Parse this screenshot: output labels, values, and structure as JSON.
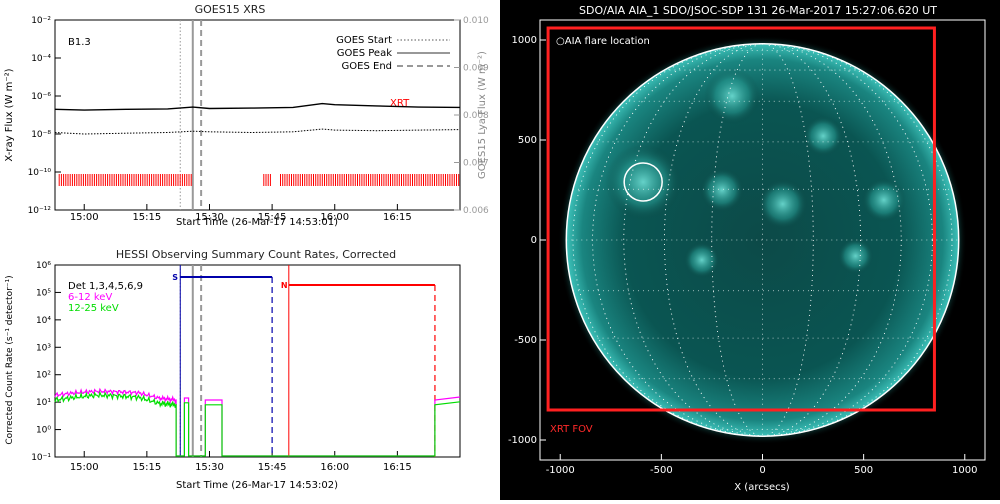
{
  "chart_data": [
    {
      "type": "line",
      "title": "GOES15 XRS",
      "xlabel": "Start Time (26-Mar-17 14:53:01)",
      "ylabel": "X-ray Flux (W m⁻²)",
      "ylabel_right": "GOES15 Lya Flux (W m⁻²)",
      "x_ticks": [
        "15:00",
        "15:15",
        "15:30",
        "15:45",
        "16:00",
        "16:15"
      ],
      "y_ticks": [
        "10⁻²",
        "10⁻⁴",
        "10⁻⁶",
        "10⁻⁸",
        "10⁻¹⁰",
        "10⁻¹²"
      ],
      "y_ticks_right": [
        "0.010",
        "0.009",
        "0.008",
        "0.007",
        "0.006"
      ],
      "annotation": "B1.3",
      "xrt_label": "XRT",
      "legend": [
        {
          "label": "GOES Start",
          "style": "dotted"
        },
        {
          "label": "GOES Peak",
          "style": "solid"
        },
        {
          "label": "GOES End",
          "style": "dashed"
        }
      ],
      "legend_position": "top-right",
      "event_times": {
        "start": "15:23",
        "peak": "15:26",
        "end": "15:28"
      },
      "series": [
        {
          "color": "#000000",
          "style": "solid",
          "x": [
            "14:53",
            "15:00",
            "15:10",
            "15:20",
            "15:26",
            "15:30",
            "15:40",
            "15:50",
            "15:57",
            "16:00",
            "16:10",
            "16:20",
            "16:30"
          ],
          "y": [
            2e-07,
            1.8e-07,
            2e-07,
            2.1e-07,
            2.6e-07,
            2.2e-07,
            2.3e-07,
            2.5e-07,
            4e-07,
            3.5e-07,
            3e-07,
            2.6e-07,
            2.5e-07
          ]
        },
        {
          "color": "#000000",
          "style": "dotted",
          "x": [
            "14:53",
            "15:00",
            "15:10",
            "15:20",
            "15:26",
            "15:30",
            "15:40",
            "15:50",
            "15:57",
            "16:00",
            "16:10",
            "16:20",
            "16:30"
          ],
          "y": [
            1.2e-08,
            1e-08,
            1.1e-08,
            1.2e-08,
            1.4e-08,
            1.3e-08,
            1.2e-08,
            1.3e-08,
            1.8e-08,
            1.6e-08,
            1.5e-08,
            1.6e-08,
            1.7e-08
          ]
        }
      ],
      "xrt_intervals": [
        [
          "14:54",
          "15:26"
        ],
        [
          "15:43",
          "15:45"
        ],
        [
          "15:47",
          "16:30"
        ]
      ]
    },
    {
      "type": "line",
      "title": "HESSI Observing Summary Count Rates, Corrected",
      "xlabel": "Start Time (26-Mar-17 14:53:02)",
      "ylabel": "Corrected Count Rate (s⁻¹ detector⁻¹)",
      "x_ticks": [
        "15:00",
        "15:15",
        "15:30",
        "15:45",
        "16:00",
        "16:15"
      ],
      "y_ticks": [
        "10⁶",
        "10⁵",
        "10⁴",
        "10³",
        "10²",
        "10¹",
        "10⁰",
        "10⁻¹"
      ],
      "legend": [
        {
          "label": "Det 1,3,4,5,6,9",
          "color": "#000000"
        },
        {
          "label": "6-12 keV",
          "color": "#ff00ff"
        },
        {
          "label": "12-25 keV",
          "color": "#00dd00"
        }
      ],
      "legend_position": "top-left",
      "markers": [
        {
          "label": "S",
          "color": "#0000aa",
          "start": "15:23",
          "end": "15:45"
        },
        {
          "label": "N",
          "color": "#ff0000",
          "start": "15:49",
          "end": "16:24"
        }
      ],
      "series": [
        {
          "name": "6-12 keV",
          "color": "#ff00ff",
          "x": [
            "14:53",
            "14:58",
            "15:03",
            "15:08",
            "15:13",
            "15:18",
            "15:22"
          ],
          "y": [
            18,
            22,
            25,
            24,
            22,
            14,
            12
          ]
        },
        {
          "name": "12-25 keV",
          "color": "#00dd00",
          "x": [
            "14:53",
            "14:58",
            "15:03",
            "15:08",
            "15:13",
            "15:18",
            "15:22"
          ],
          "y": [
            12,
            15,
            18,
            17,
            15,
            9,
            8
          ]
        }
      ]
    },
    {
      "type": "image",
      "title": "SDO/AIA AIA_1 SDO/JSOC-SDP 131 26-Mar-2017 15:27:06.620 UT",
      "xlabel": "X (arcsecs)",
      "x_ticks": [
        "-1000",
        "-500",
        "0",
        "500",
        "1000"
      ],
      "y_ticks": [
        "1000",
        "500",
        "0",
        "-500",
        "-1000"
      ],
      "flare_label": "AIA flare location",
      "fov_label": "XRT FOV",
      "flare_location": {
        "x": -590,
        "y": 290
      },
      "solar_radius": 970,
      "xrt_fov": {
        "x_min": -1060,
        "x_max": 850,
        "y_min": -850,
        "y_max": 1060
      }
    }
  ]
}
